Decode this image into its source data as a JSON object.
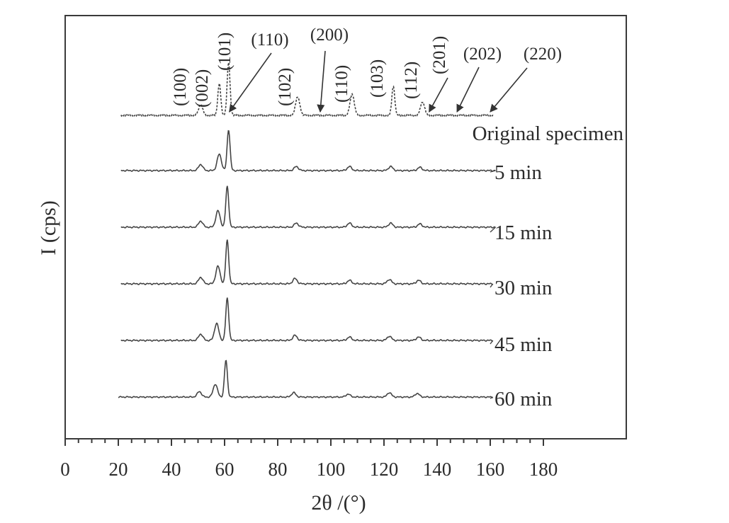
{
  "chart_data": {
    "type": "line",
    "title": "",
    "xlabel": "2θ /(°)",
    "ylabel": "I (cps)",
    "xlim": [
      0,
      180
    ],
    "x_ticks": [
      0,
      20,
      40,
      60,
      80,
      100,
      120,
      140,
      160,
      180
    ],
    "y_ticks_shown": false,
    "grid": false,
    "legend": "none (series labelled at right end of each trace)",
    "peak_positions": [
      51,
      58,
      61.5,
      87,
      96,
      108,
      123.5,
      134.5,
      137,
      147,
      160
    ],
    "peak_labels": [
      {
        "label": "(100)",
        "x": 51
      },
      {
        "label": "(002)",
        "x": 58
      },
      {
        "label": "(101)",
        "x": 61.5
      },
      {
        "label": "(110)",
        "x": 61.5
      },
      {
        "label": "(102)",
        "x": 87
      },
      {
        "label": "(200)",
        "x": 96
      },
      {
        "label": "(110)",
        "x": 108
      },
      {
        "label": "(103)",
        "x": 123.5
      },
      {
        "label": "(112)",
        "x": 134.5
      },
      {
        "label": "(201)",
        "x": 137
      },
      {
        "label": "(202)",
        "x": 147
      },
      {
        "label": "(220)",
        "x": 160
      }
    ],
    "series": [
      {
        "name": "Original specimen",
        "x_range": [
          21,
          161
        ],
        "peaks": [
          {
            "x": 51,
            "height": 0.2
          },
          {
            "x": 58,
            "height": 0.6
          },
          {
            "x": 61.5,
            "height": 1.0
          },
          {
            "x": 87.5,
            "height": 0.35
          },
          {
            "x": 108,
            "height": 0.4
          },
          {
            "x": 123.5,
            "height": 0.55
          },
          {
            "x": 134.5,
            "height": 0.25
          }
        ]
      },
      {
        "name": "5 min",
        "x_range": [
          21,
          162
        ],
        "peaks": [
          {
            "x": 51,
            "height": 0.15
          },
          {
            "x": 58,
            "height": 0.4
          },
          {
            "x": 61.5,
            "height": 1.0
          },
          {
            "x": 87,
            "height": 0.1
          },
          {
            "x": 107,
            "height": 0.1
          },
          {
            "x": 122.5,
            "height": 0.1
          },
          {
            "x": 133.5,
            "height": 0.08
          }
        ]
      },
      {
        "name": "15 min",
        "x_range": [
          21,
          162
        ],
        "peaks": [
          {
            "x": 51,
            "height": 0.15
          },
          {
            "x": 57.5,
            "height": 0.4
          },
          {
            "x": 61,
            "height": 1.0
          },
          {
            "x": 87,
            "height": 0.1
          },
          {
            "x": 107,
            "height": 0.1
          },
          {
            "x": 122.5,
            "height": 0.1
          },
          {
            "x": 133.5,
            "height": 0.08
          }
        ]
      },
      {
        "name": "30 min",
        "x_range": [
          21,
          161
        ],
        "peaks": [
          {
            "x": 51,
            "height": 0.15
          },
          {
            "x": 57.5,
            "height": 0.4
          },
          {
            "x": 61,
            "height": 1.0
          },
          {
            "x": 86.5,
            "height": 0.12
          },
          {
            "x": 107,
            "height": 0.08
          },
          {
            "x": 122,
            "height": 0.1
          },
          {
            "x": 133,
            "height": 0.08
          }
        ]
      },
      {
        "name": "45 min",
        "x_range": [
          21,
          161
        ],
        "peaks": [
          {
            "x": 51,
            "height": 0.15
          },
          {
            "x": 57,
            "height": 0.4
          },
          {
            "x": 61,
            "height": 1.0
          },
          {
            "x": 86.5,
            "height": 0.12
          },
          {
            "x": 107,
            "height": 0.08
          },
          {
            "x": 122,
            "height": 0.1
          },
          {
            "x": 133,
            "height": 0.08
          }
        ]
      },
      {
        "name": "60 min",
        "x_range": [
          20,
          161
        ],
        "peaks": [
          {
            "x": 50.5,
            "height": 0.15
          },
          {
            "x": 56.5,
            "height": 0.35
          },
          {
            "x": 60.5,
            "height": 1.0
          },
          {
            "x": 86,
            "height": 0.12
          },
          {
            "x": 106.5,
            "height": 0.08
          },
          {
            "x": 122,
            "height": 0.12
          },
          {
            "x": 132.5,
            "height": 0.1
          }
        ]
      }
    ]
  }
}
